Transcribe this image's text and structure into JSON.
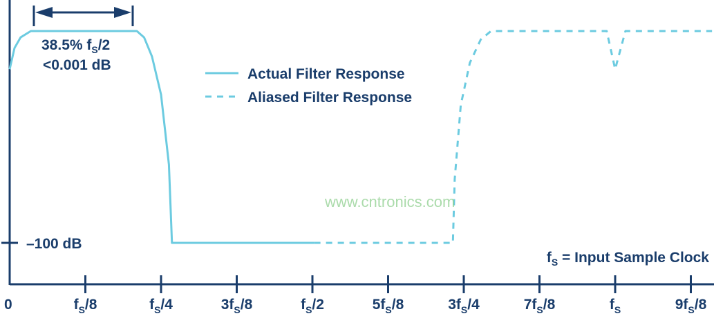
{
  "chart_data": {
    "type": "line",
    "title": "",
    "xlabel": "",
    "ylabel": "",
    "x_unit": "fs",
    "y_unit": "dB",
    "xlim": [
      0,
      1.16
    ],
    "ylim": [
      -100,
      0
    ],
    "grid": false,
    "legend_placement": "center-top",
    "x_ticks": [
      {
        "value": 0,
        "pre": "0",
        "sub": "",
        "post": ""
      },
      {
        "value": 0.125,
        "pre": "f",
        "sub": "S",
        "post": "/8"
      },
      {
        "value": 0.25,
        "pre": "f",
        "sub": "S",
        "post": "/4"
      },
      {
        "value": 0.375,
        "pre": "3f",
        "sub": "S",
        "post": "/8"
      },
      {
        "value": 0.5,
        "pre": "f",
        "sub": "S",
        "post": "/2"
      },
      {
        "value": 0.625,
        "pre": "5f",
        "sub": "S",
        "post": "/8"
      },
      {
        "value": 0.75,
        "pre": "3f",
        "sub": "S",
        "post": "/4"
      },
      {
        "value": 0.875,
        "pre": "7f",
        "sub": "S",
        "post": "/8"
      },
      {
        "value": 1.0,
        "pre": "f",
        "sub": "S",
        "post": ""
      },
      {
        "value": 1.125,
        "pre": "9f",
        "sub": "S",
        "post": "/8"
      }
    ],
    "y_tick": {
      "value": -100,
      "label": "–100 dB"
    },
    "series": [
      {
        "name": "Actual Filter Response",
        "style": "solid",
        "color": "#6ccbe0",
        "x": [
          0,
          0.008,
          0.018,
          0.035,
          0.21,
          0.222,
          0.235,
          0.25,
          0.263,
          0.268,
          0.503
        ],
        "y": [
          -18,
          -8,
          -3,
          0,
          0,
          -3,
          -12,
          -30,
          -63,
          -100,
          -100
        ]
      },
      {
        "name": "Aliased Filter Response",
        "style": "dashed",
        "color": "#6ccbe0",
        "x": [
          0.503,
          0.732,
          0.735,
          0.745,
          0.76,
          0.778,
          0.795,
          0.986,
          1.0,
          1.017,
          1.16
        ],
        "y": [
          -100,
          -100,
          -70,
          -35,
          -15,
          -4,
          0,
          0,
          -18,
          0,
          0
        ]
      }
    ],
    "annotations": {
      "passband_line1_pre": "38.5% f",
      "passband_line1_sub": "S",
      "passband_line1_post": "/2",
      "passband_line2": "<0.001 dB",
      "footnote_pre": "f",
      "footnote_sub": "S",
      "footnote_post": " = Input Sample Clock"
    },
    "colors": {
      "axis": "#1a3d6b",
      "curve": "#6ccbe0"
    }
  },
  "watermark": "www.cntronics.com"
}
